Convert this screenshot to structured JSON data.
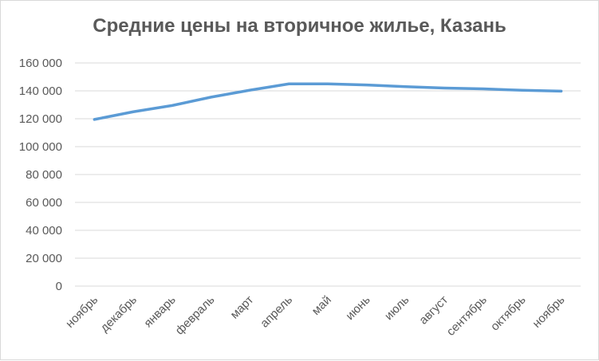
{
  "chart_data": {
    "type": "line",
    "title": "Средние цены на вторичное жилье, Казань",
    "xlabel": "",
    "ylabel": "",
    "categories": [
      "ноябрь",
      "декабрь",
      "январь",
      "февраль",
      "март",
      "апрель",
      "май",
      "июнь",
      "июль",
      "август",
      "сентябрь",
      "октябрь",
      "ноябрь"
    ],
    "series": [
      {
        "values": [
          119500,
          125000,
          129500,
          135500,
          140500,
          145000,
          145000,
          144200,
          143000,
          142000,
          141400,
          140400,
          139800
        ]
      }
    ],
    "y_ticks": [
      "0",
      "20 000",
      "40 000",
      "60 000",
      "80 000",
      "100 000",
      "120 000",
      "140 000",
      "160 000"
    ],
    "ylim": [
      0,
      160000
    ],
    "grid": true,
    "legend": "none",
    "colors": {
      "line": "#5b9bd5",
      "grid": "#d9d9d9",
      "text": "#595959"
    }
  }
}
